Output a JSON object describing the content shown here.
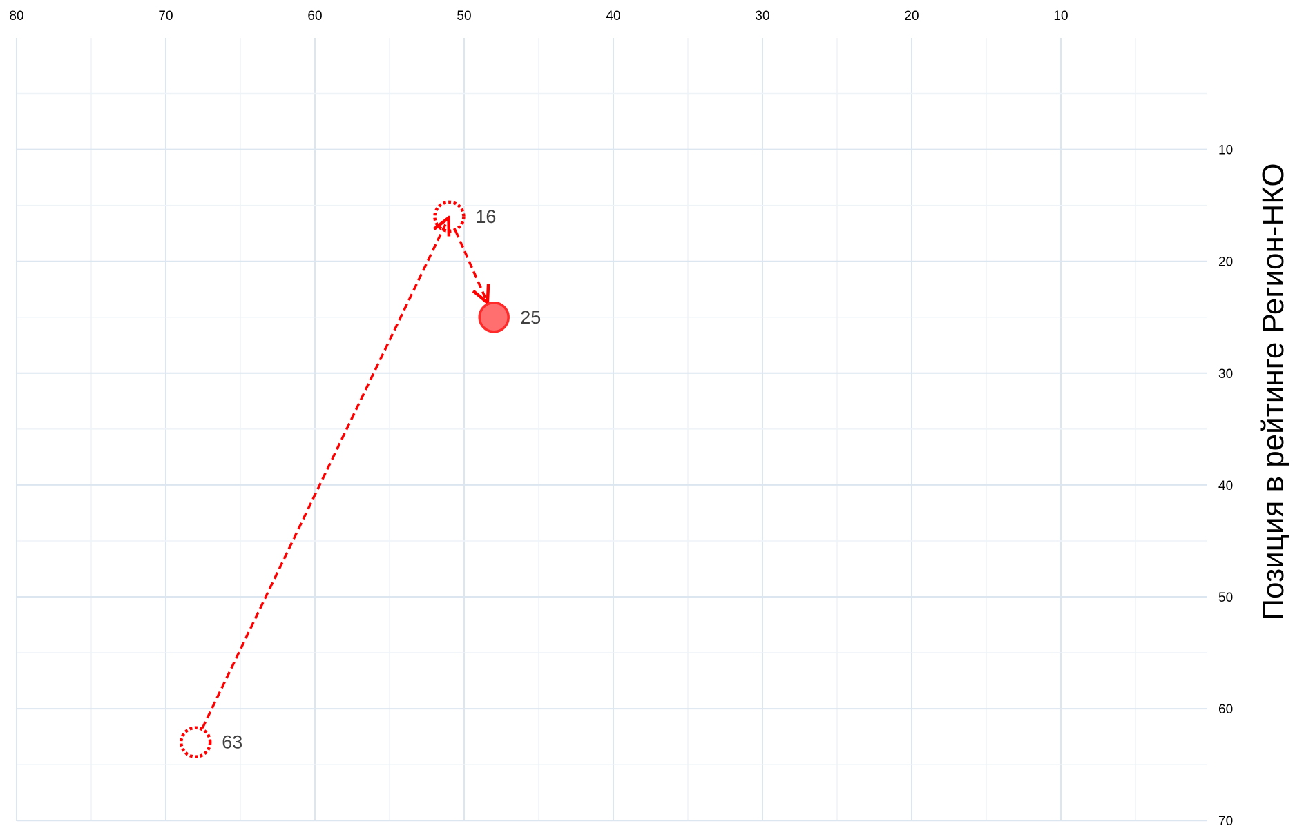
{
  "chart_data": {
    "type": "scatter",
    "title": "",
    "xlabel": "",
    "ylabel": "Позиция в рейтинге Регион-НКО",
    "xlim": [
      80,
      0
    ],
    "ylim": [
      70,
      0
    ],
    "x_reversed": true,
    "y_reversed": true,
    "x_axis_position": "top",
    "y_axis_position": "right",
    "grid": true,
    "xticks": [
      80,
      70,
      60,
      50,
      40,
      30,
      20,
      10
    ],
    "yticks": [
      10,
      20,
      30,
      40,
      50,
      60,
      70
    ],
    "points": [
      {
        "x": 68,
        "y": 63,
        "label": "63",
        "style": "dotted-hollow"
      },
      {
        "x": 51,
        "y": 16,
        "label": "16",
        "style": "dotted-hollow"
      },
      {
        "x": 48,
        "y": 25,
        "label": "25",
        "style": "filled"
      }
    ],
    "path": [
      [
        68,
        63
      ],
      [
        51,
        16
      ],
      [
        48,
        25
      ]
    ],
    "path_style": "dashed-arrows"
  },
  "colors": {
    "grid_major": "#dce6f0",
    "grid_minor": "#eef3f8",
    "path": "#ff0000",
    "point_fill": "#ff6f6f",
    "point_stroke": "#ff2b2b",
    "label_text": "#404040",
    "tick_text": "#000000"
  }
}
